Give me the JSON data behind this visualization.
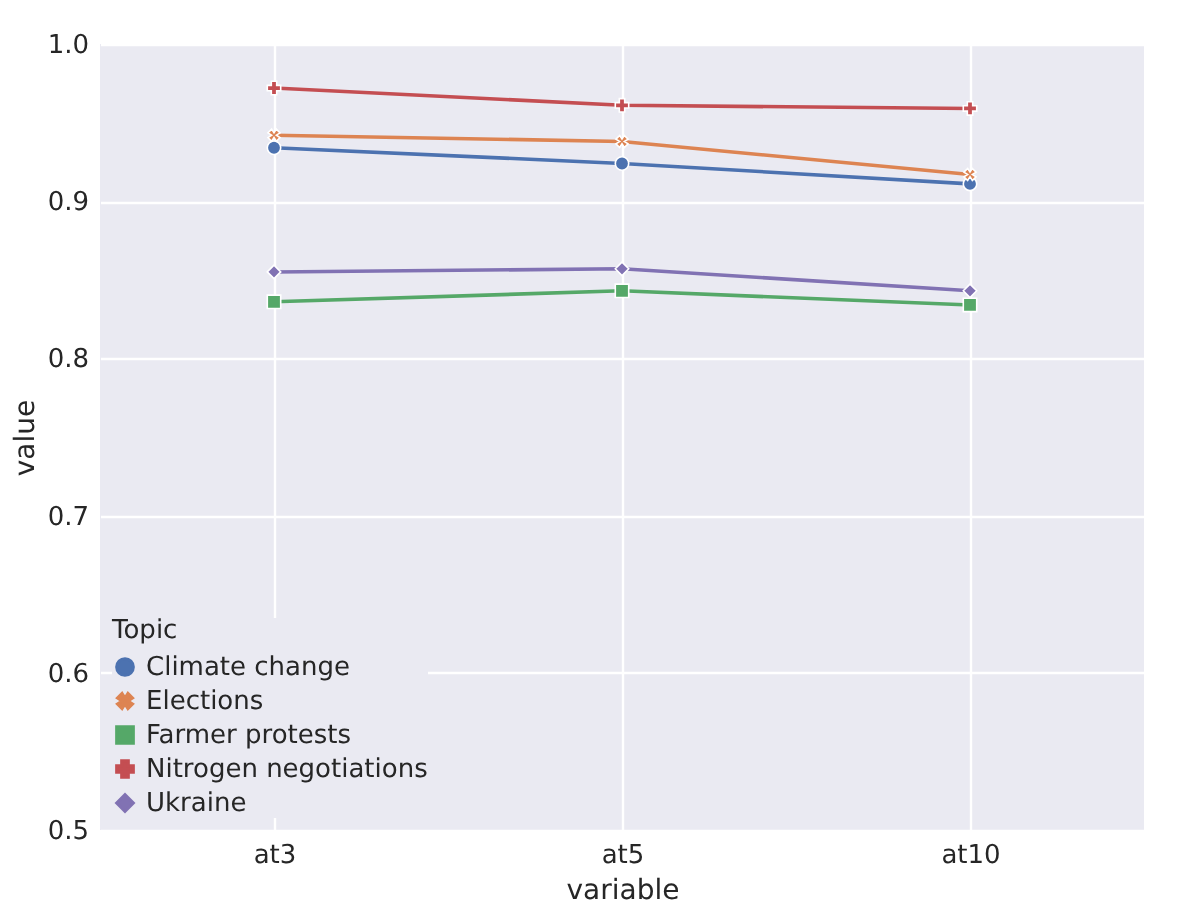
{
  "chart_data": {
    "type": "line",
    "xlabel": "variable",
    "ylabel": "value",
    "legend_title": "Topic",
    "categories": [
      "at3",
      "at5",
      "at10"
    ],
    "ylim": [
      0.5,
      1.0
    ],
    "yticks": [
      {
        "value": 0.5,
        "label": "0.5"
      },
      {
        "value": 0.6,
        "label": "0.6"
      },
      {
        "value": 0.7,
        "label": "0.7"
      },
      {
        "value": 0.8,
        "label": "0.8"
      },
      {
        "value": 0.9,
        "label": "0.9"
      },
      {
        "value": 1.0,
        "label": "1.0"
      }
    ],
    "grid": true,
    "legend": "bottom left",
    "line_style": "solid",
    "series": [
      {
        "name": "Climate change",
        "color": "#4c72b0",
        "marker": "circle",
        "values": [
          0.934,
          0.924,
          0.911
        ]
      },
      {
        "name": "Elections",
        "color": "#dd8452",
        "marker": "cross",
        "values": [
          0.942,
          0.938,
          0.917
        ]
      },
      {
        "name": "Farmer protests",
        "color": "#55a868",
        "marker": "square",
        "values": [
          0.836,
          0.843,
          0.834
        ]
      },
      {
        "name": "Nitrogen negotiations",
        "color": "#c44e52",
        "marker": "plus",
        "values": [
          0.972,
          0.961,
          0.959
        ]
      },
      {
        "name": "Ukraine",
        "color": "#8172b3",
        "marker": "diamond",
        "values": [
          0.855,
          0.857,
          0.843
        ]
      }
    ]
  }
}
